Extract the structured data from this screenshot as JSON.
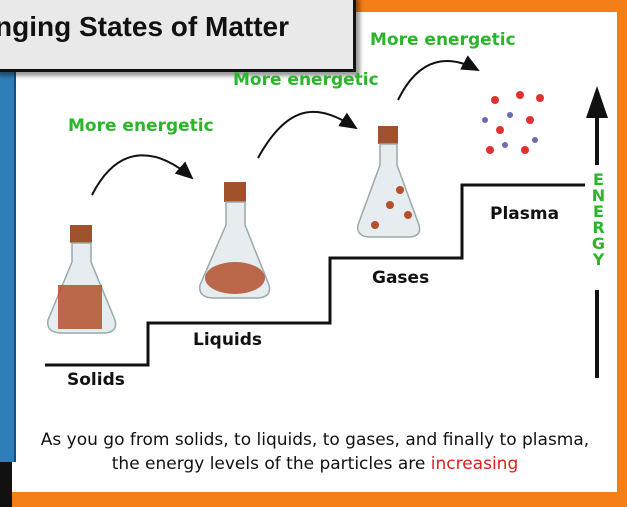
{
  "title": "nging States of Matter",
  "transitions": [
    "More energetic",
    "More energetic",
    "More energetic"
  ],
  "states": [
    "Solids",
    "Liquids",
    "Gases",
    "Plasma"
  ],
  "energy_label": "ENERGY",
  "caption": {
    "line1": "As you go from solids, to liquids, to gases, and finally to plasma,",
    "line2": "the energy levels of the particles are",
    "highlight": "increasing"
  }
}
